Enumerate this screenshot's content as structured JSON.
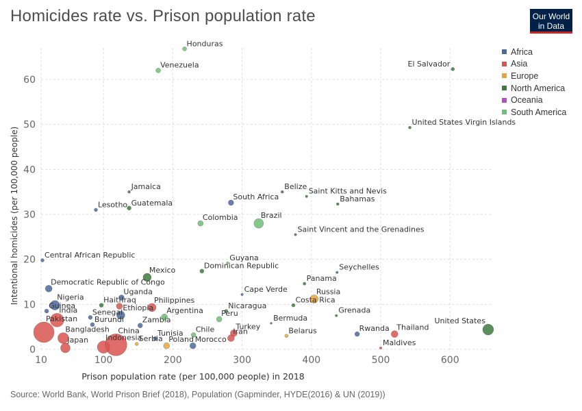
{
  "title": "Homicides rate vs. Prison population rate",
  "logo": {
    "line1": "Our World",
    "line2": "in Data"
  },
  "source": "Source: World Bank, World Prison Brief (2018), Population (Gapminder, HYDE(2016) & UN (2019))",
  "colors": {
    "Africa": "#4c6a9c",
    "Asia": "#d9534f",
    "Europe": "#e8a43c",
    "North America": "#3d7a3d",
    "Oceania": "#b44fc0",
    "South America": "#6ebf78"
  },
  "chart_data": {
    "type": "scatter",
    "title": "Homicides rate vs. Prison population rate",
    "xlabel": "Prison population rate (per 100,000 people) in 2018",
    "ylabel": "Intentional homicides (per 100,000 people)",
    "xlim": [
      10,
      660
    ],
    "ylim": [
      0,
      67
    ],
    "xticks": [
      10,
      100,
      200,
      300,
      400,
      500,
      600
    ],
    "yticks": [
      0,
      10,
      20,
      30,
      40,
      50,
      60
    ],
    "grid": true,
    "legend_position": "top-right",
    "legend": [
      "Africa",
      "Asia",
      "Europe",
      "North America",
      "Oceania",
      "South America"
    ],
    "points": [
      {
        "name": "Honduras",
        "x": 217,
        "y": 66.8,
        "region": "South America",
        "r": 3
      },
      {
        "name": "Venezuela",
        "x": 179,
        "y": 62,
        "region": "South America",
        "r": 3.5
      },
      {
        "name": "El Salvador",
        "x": 604,
        "y": 62.3,
        "region": "North America",
        "r": 2.5
      },
      {
        "name": "United States Virgin Islands",
        "x": 542,
        "y": 49.3,
        "region": "North America",
        "r": 2
      },
      {
        "name": "Jamaica",
        "x": 137,
        "y": 35,
        "region": "North America",
        "r": 2
      },
      {
        "name": "Lesotho",
        "x": 89,
        "y": 31,
        "region": "Africa",
        "r": 2.5
      },
      {
        "name": "Guatemala",
        "x": 137,
        "y": 31.4,
        "region": "North America",
        "r": 3
      },
      {
        "name": "South Africa",
        "x": 284,
        "y": 32.6,
        "region": "Africa",
        "r": 4
      },
      {
        "name": "Belize",
        "x": 358,
        "y": 35,
        "region": "North America",
        "r": 2
      },
      {
        "name": "Saint Kitts and Nevis",
        "x": 393,
        "y": 34,
        "region": "North America",
        "r": 1.8
      },
      {
        "name": "Bahamas",
        "x": 438,
        "y": 32.3,
        "region": "North America",
        "r": 2
      },
      {
        "name": "Colombia",
        "x": 240,
        "y": 28,
        "region": "South America",
        "r": 4
      },
      {
        "name": "Brazil",
        "x": 324,
        "y": 28,
        "region": "South America",
        "r": 7
      },
      {
        "name": "Saint Vincent and the Grenadines",
        "x": 377,
        "y": 25.5,
        "region": "North America",
        "r": 1.8
      },
      {
        "name": "Central African Republic",
        "x": 12,
        "y": 19.8,
        "region": "Africa",
        "r": 2.5
      },
      {
        "name": "Guyana",
        "x": 279,
        "y": 19.2,
        "region": "South America",
        "r": 1.8
      },
      {
        "name": "Dominican Republic",
        "x": 242,
        "y": 17.4,
        "region": "North America",
        "r": 3
      },
      {
        "name": "Seychelles",
        "x": 437,
        "y": 17.1,
        "region": "Africa",
        "r": 1.8
      },
      {
        "name": "Mexico",
        "x": 163,
        "y": 16,
        "region": "North America",
        "r": 6
      },
      {
        "name": "Panama",
        "x": 390,
        "y": 14.6,
        "region": "North America",
        "r": 2.2
      },
      {
        "name": "Democratic Republic of Congo",
        "x": 21,
        "y": 13.5,
        "region": "Africa",
        "r": 5
      },
      {
        "name": "Cape Verde",
        "x": 300,
        "y": 12.2,
        "region": "Africa",
        "r": 1.8
      },
      {
        "name": "Russia",
        "x": 404,
        "y": 11.2,
        "region": "Europe",
        "r": 6
      },
      {
        "name": "Uganda",
        "x": 126,
        "y": 11.5,
        "region": "Africa",
        "r": 4
      },
      {
        "name": "Nigeria",
        "x": 30,
        "y": 9.8,
        "region": "Africa",
        "r": 7
      },
      {
        "name": "Haiti",
        "x": 97,
        "y": 9.8,
        "region": "North America",
        "r": 3
      },
      {
        "name": "Iraq",
        "x": 123,
        "y": 9.6,
        "region": "Asia",
        "r": 4.5
      },
      {
        "name": "Costa Rica",
        "x": 374,
        "y": 9.8,
        "region": "North America",
        "r": 2.5
      },
      {
        "name": "Philippines",
        "x": 170,
        "y": 9.3,
        "region": "Asia",
        "r": 6
      },
      {
        "name": "Guinea",
        "x": 18,
        "y": 8.5,
        "region": "Africa",
        "r": 3
      },
      {
        "name": "Nicaragua",
        "x": 277,
        "y": 8.5,
        "region": "North America",
        "r": 2.5
      },
      {
        "name": "Ethiopia",
        "x": 125,
        "y": 7.6,
        "region": "Africa",
        "r": 6
      },
      {
        "name": "Senegal",
        "x": 81,
        "y": 7.1,
        "region": "Africa",
        "r": 3
      },
      {
        "name": "Argentina",
        "x": 188,
        "y": 7.2,
        "region": "South America",
        "r": 4.5
      },
      {
        "name": "Grenada",
        "x": 436,
        "y": 7.5,
        "region": "North America",
        "r": 1.8
      },
      {
        "name": "India",
        "x": 33,
        "y": 6.5,
        "region": "Asia",
        "r": 10
      },
      {
        "name": "Peru",
        "x": 267,
        "y": 6.7,
        "region": "South America",
        "r": 4
      },
      {
        "name": "Bermuda",
        "x": 342,
        "y": 5.8,
        "region": "North America",
        "r": 1.5
      },
      {
        "name": "Burundi",
        "x": 84,
        "y": 5.5,
        "region": "Africa",
        "r": 3
      },
      {
        "name": "Zambia",
        "x": 153,
        "y": 5.3,
        "region": "Africa",
        "r": 3.5
      },
      {
        "name": "Rwanda",
        "x": 466,
        "y": 3.4,
        "region": "Africa",
        "r": 3.5
      },
      {
        "name": "Thailand",
        "x": 520,
        "y": 3.4,
        "region": "Asia",
        "r": 5
      },
      {
        "name": "United States",
        "x": 655,
        "y": 4.4,
        "region": "North America",
        "r": 8
      },
      {
        "name": "Chile",
        "x": 230,
        "y": 3.2,
        "region": "South America",
        "r": 3.5
      },
      {
        "name": "Turkey",
        "x": 288,
        "y": 3.6,
        "region": "Asia",
        "r": 5
      },
      {
        "name": "Belarus",
        "x": 364,
        "y": 3.0,
        "region": "Europe",
        "r": 2.5
      },
      {
        "name": "Bangladesh",
        "x": 42,
        "y": 2.5,
        "region": "Asia",
        "r": 8
      },
      {
        "name": "China",
        "x": 118,
        "y": 1.0,
        "region": "Asia",
        "r": 16
      },
      {
        "name": "Tunisia",
        "x": 175,
        "y": 2.4,
        "region": "Africa",
        "r": 3
      },
      {
        "name": "Iran",
        "x": 284,
        "y": 2.5,
        "region": "Asia",
        "r": 5
      },
      {
        "name": "Pakistan",
        "x": 14,
        "y": 3.8,
        "region": "Asia",
        "r": 15
      },
      {
        "name": "Indonesia",
        "x": 100,
        "y": 0.5,
        "region": "Asia",
        "r": 9
      },
      {
        "name": "Serbia",
        "x": 148,
        "y": 1.2,
        "region": "Europe",
        "r": 2.5
      },
      {
        "name": "Poland",
        "x": 191,
        "y": 0.8,
        "region": "Europe",
        "r": 4.5
      },
      {
        "name": "Morocco",
        "x": 229,
        "y": 0.8,
        "region": "Africa",
        "r": 4.5
      },
      {
        "name": "Japan",
        "x": 45,
        "y": 0.3,
        "region": "Asia",
        "r": 7
      },
      {
        "name": "Maldives",
        "x": 500,
        "y": 0.3,
        "region": "Asia",
        "r": 1.8
      }
    ]
  }
}
